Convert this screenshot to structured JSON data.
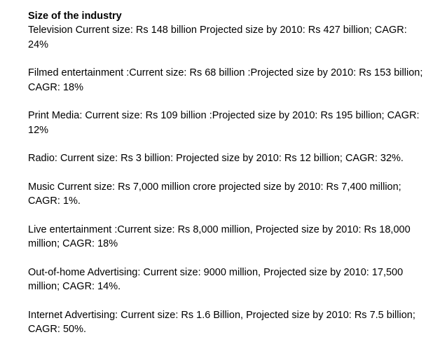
{
  "slide": {
    "heading": "Size of the industry",
    "paragraphs": [
      "Television Current size: Rs 148 billion Projected size by 2010: Rs 427 billion; CAGR: 24%",
      "Filmed entertainment :Current size: Rs 68 billion :Projected size by 2010: Rs 153 billion; CAGR: 18%",
      "Print Media: Current size: Rs 109 billion :Projected size by 2010: Rs 195 billion; CAGR: 12%",
      "Radio: Current size: Rs 3 billion: Projected size by 2010: Rs 12 billion; CAGR: 32%.",
      "Music Current size: Rs 7,000 million crore projected size by 2010: Rs 7,400 million; CAGR: 1%.",
      "Live entertainment :Current size: Rs 8,000 million, Projected size by 2010: Rs 18,000 million; CAGR: 18%",
      "Out-of-home Advertising: Current size: 9000 million, Projected size by 2010: 17,500 million; CAGR: 14%.",
      "Internet Advertising: Current size: Rs 1.6 Billion, Projected size by 2010: Rs 7.5 billion; CAGR: 50%."
    ]
  }
}
